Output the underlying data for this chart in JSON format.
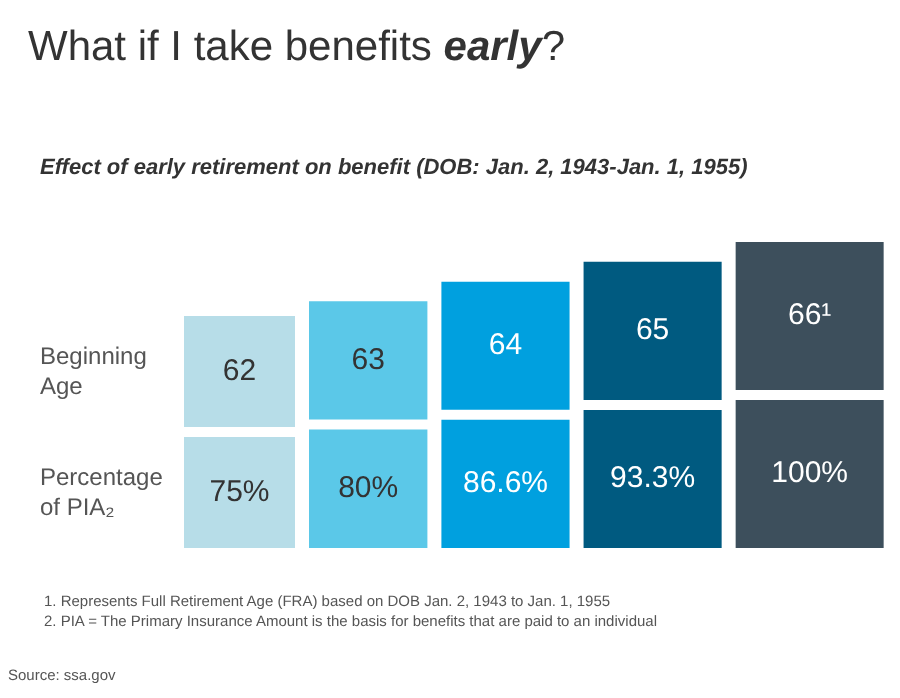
{
  "chart_data": {
    "type": "other",
    "title": "What if I take benefits early?",
    "subtitle": "Effect of early retirement on benefit (DOB: Jan. 2, 1943-Jan. 1, 1955)",
    "y_categories": [
      "Beginning Age",
      "Percentage of PIA₂"
    ],
    "categories": [
      "62",
      "63",
      "64",
      "65",
      "66¹"
    ],
    "values": [
      75,
      80,
      86.6,
      93.3,
      100
    ],
    "value_labels": [
      "75%",
      "80%",
      "86.6%",
      "93.3%",
      "100%"
    ],
    "colors": [
      "#b7dde8",
      "#5bc8e8",
      "#00a0df",
      "#005a80",
      "#3d4f5c"
    ],
    "annotations": [
      "1.  Represents Full Retirement Age (FRA) based on DOB Jan. 2, 1943 to Jan. 1, 1955",
      "2.  PIA = The Primary Insurance Amount is the basis for benefits that are paid to an individual",
      "Source: ssa.gov"
    ]
  }
}
